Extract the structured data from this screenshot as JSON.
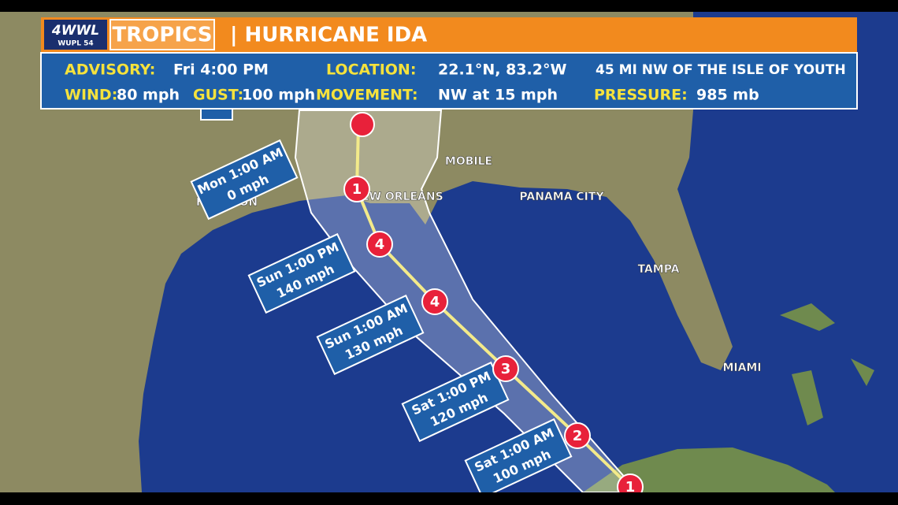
{
  "header": {
    "logo": "4WWL",
    "logo_sub": "WUPL 54",
    "section": "TROPICS",
    "title": "| HURRICANE IDA"
  },
  "info": {
    "advisory_label": "ADVISORY:",
    "advisory": "Fri 4:00 PM",
    "location_label": "LOCATION:",
    "location": "22.1°N, 83.2°W",
    "location_note": "45 MI NW OF THE ISLE OF YOUTH",
    "wind_label": "WIND:",
    "wind": "80 mph",
    "gust_label": "GUST:",
    "gust": "100 mph",
    "movement_label": "MOVEMENT:",
    "movement": "NW at 15 mph",
    "pressure_label": "PRESSURE:",
    "pressure": "985 mb"
  },
  "cities": [
    "MOBILE",
    "NEW ORLEANS",
    "PANAMA CITY",
    "HOUSTON",
    "TAMPA",
    "MIAMI"
  ],
  "current": {
    "category": "1"
  },
  "forecast": [
    {
      "time": "Sat 1:00 AM",
      "wind": "100 mph",
      "category": "2"
    },
    {
      "time": "Sat 1:00 PM",
      "wind": "120 mph",
      "category": "3"
    },
    {
      "time": "Sun 1:00 AM",
      "wind": "130 mph",
      "category": "4"
    },
    {
      "time": "Sun 1:00 PM",
      "wind": "140 mph",
      "category": "4"
    },
    {
      "time": "Mon 1:00 AM",
      "wind": "0 mph",
      "category": "1"
    }
  ]
}
